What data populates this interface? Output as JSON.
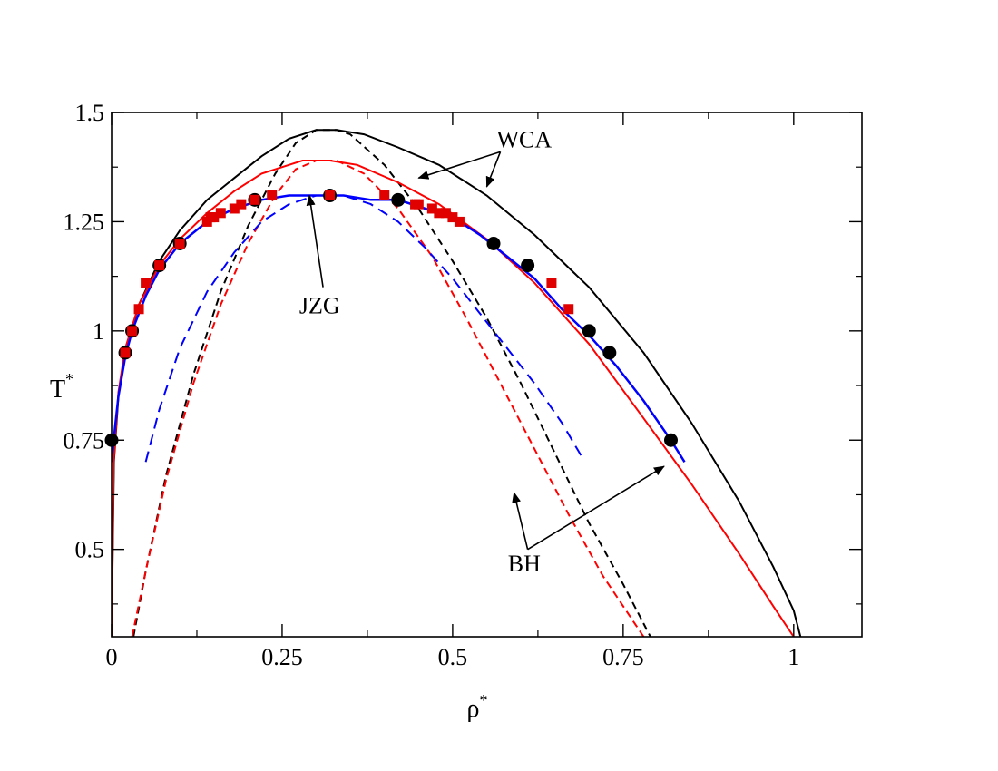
{
  "chart_data": {
    "type": "line",
    "title": "",
    "xlabel": "ρ",
    "xlabel_sup": "*",
    "ylabel": "T",
    "ylabel_sup": "*",
    "xlim": [
      0,
      1.1
    ],
    "ylim": [
      0.3,
      1.5
    ],
    "xticks": [
      {
        "v": 0,
        "label": "0"
      },
      {
        "v": 0.25,
        "label": "0.25"
      },
      {
        "v": 0.5,
        "label": "0.5"
      },
      {
        "v": 0.75,
        "label": "0.75"
      },
      {
        "v": 1,
        "label": "1"
      }
    ],
    "yticks": [
      {
        "v": 0.5,
        "label": "0.5"
      },
      {
        "v": 0.75,
        "label": "0.75"
      },
      {
        "v": 1,
        "label": "1"
      },
      {
        "v": 1.25,
        "label": "1.25"
      },
      {
        "v": 1.5,
        "label": "1.5"
      }
    ],
    "x_minor_step": 0.125,
    "y_minor_step": 0.125,
    "colors": {
      "black": "#000000",
      "red": "#ff0000",
      "blue": "#0000ff",
      "marker_red": "#e00000"
    },
    "series": [
      {
        "name": "WCA solid",
        "color": "#000000",
        "style": "solid",
        "points": [
          [
            0.0,
            0.3
          ],
          [
            0.0035,
            0.7
          ],
          [
            0.01,
            0.85
          ],
          [
            0.02,
            0.95
          ],
          [
            0.04,
            1.06
          ],
          [
            0.07,
            1.16
          ],
          [
            0.1,
            1.23
          ],
          [
            0.14,
            1.3
          ],
          [
            0.18,
            1.35
          ],
          [
            0.22,
            1.4
          ],
          [
            0.26,
            1.44
          ],
          [
            0.3,
            1.46
          ],
          [
            0.33,
            1.46
          ],
          [
            0.37,
            1.45
          ],
          [
            0.42,
            1.42
          ],
          [
            0.48,
            1.38
          ],
          [
            0.55,
            1.31
          ],
          [
            0.62,
            1.22
          ],
          [
            0.7,
            1.1
          ],
          [
            0.78,
            0.95
          ],
          [
            0.85,
            0.79
          ],
          [
            0.92,
            0.61
          ],
          [
            0.97,
            0.46
          ],
          [
            1.0,
            0.36
          ],
          [
            1.01,
            0.3
          ]
        ]
      },
      {
        "name": "WCA dashed",
        "color": "#000000",
        "style": "dashed",
        "points": [
          [
            0.032,
            0.3
          ],
          [
            0.05,
            0.45
          ],
          [
            0.08,
            0.67
          ],
          [
            0.12,
            0.9
          ],
          [
            0.16,
            1.09
          ],
          [
            0.2,
            1.24
          ],
          [
            0.24,
            1.36
          ],
          [
            0.27,
            1.43
          ],
          [
            0.3,
            1.46
          ],
          [
            0.33,
            1.46
          ],
          [
            0.35,
            1.45
          ],
          [
            0.4,
            1.38
          ],
          [
            0.45,
            1.28
          ],
          [
            0.5,
            1.16
          ],
          [
            0.55,
            1.03
          ],
          [
            0.6,
            0.88
          ],
          [
            0.65,
            0.72
          ],
          [
            0.7,
            0.56
          ],
          [
            0.75,
            0.42
          ],
          [
            0.79,
            0.3
          ]
        ]
      },
      {
        "name": "BH solid",
        "color": "#ff0000",
        "style": "solid",
        "points": [
          [
            0.0,
            0.3
          ],
          [
            0.003,
            0.7
          ],
          [
            0.01,
            0.86
          ],
          [
            0.02,
            0.96
          ],
          [
            0.04,
            1.06
          ],
          [
            0.07,
            1.15
          ],
          [
            0.1,
            1.21
          ],
          [
            0.14,
            1.27
          ],
          [
            0.18,
            1.32
          ],
          [
            0.22,
            1.36
          ],
          [
            0.26,
            1.38
          ],
          [
            0.28,
            1.39
          ],
          [
            0.32,
            1.39
          ],
          [
            0.36,
            1.38
          ],
          [
            0.42,
            1.34
          ],
          [
            0.48,
            1.29
          ],
          [
            0.55,
            1.21
          ],
          [
            0.62,
            1.11
          ],
          [
            0.7,
            0.97
          ],
          [
            0.78,
            0.8
          ],
          [
            0.85,
            0.65
          ],
          [
            0.92,
            0.49
          ],
          [
            0.97,
            0.37
          ],
          [
            1.0,
            0.3
          ]
        ]
      },
      {
        "name": "BH dashed",
        "color": "#ff0000",
        "style": "dashed",
        "points": [
          [
            0.03,
            0.3
          ],
          [
            0.05,
            0.45
          ],
          [
            0.08,
            0.66
          ],
          [
            0.12,
            0.88
          ],
          [
            0.16,
            1.06
          ],
          [
            0.2,
            1.2
          ],
          [
            0.24,
            1.31
          ],
          [
            0.27,
            1.37
          ],
          [
            0.3,
            1.39
          ],
          [
            0.33,
            1.39
          ],
          [
            0.37,
            1.36
          ],
          [
            0.42,
            1.28
          ],
          [
            0.47,
            1.17
          ],
          [
            0.52,
            1.03
          ],
          [
            0.57,
            0.88
          ],
          [
            0.62,
            0.73
          ],
          [
            0.67,
            0.58
          ],
          [
            0.72,
            0.44
          ],
          [
            0.78,
            0.3
          ]
        ]
      },
      {
        "name": "JZG solid",
        "color": "#0000ff",
        "style": "solid",
        "points": [
          [
            0.0,
            0.7
          ],
          [
            0.005,
            0.78
          ],
          [
            0.01,
            0.85
          ],
          [
            0.02,
            0.94
          ],
          [
            0.03,
            1.0
          ],
          [
            0.05,
            1.08
          ],
          [
            0.07,
            1.14
          ],
          [
            0.1,
            1.2
          ],
          [
            0.14,
            1.25
          ],
          [
            0.18,
            1.28
          ],
          [
            0.22,
            1.3
          ],
          [
            0.26,
            1.31
          ],
          [
            0.3,
            1.31
          ],
          [
            0.34,
            1.31
          ],
          [
            0.38,
            1.3
          ],
          [
            0.42,
            1.3
          ],
          [
            0.46,
            1.28
          ],
          [
            0.5,
            1.26
          ],
          [
            0.54,
            1.22
          ],
          [
            0.58,
            1.17
          ],
          [
            0.62,
            1.12
          ],
          [
            0.66,
            1.05
          ],
          [
            0.7,
            0.99
          ],
          [
            0.74,
            0.92
          ],
          [
            0.78,
            0.84
          ],
          [
            0.82,
            0.75
          ],
          [
            0.84,
            0.7
          ]
        ]
      },
      {
        "name": "JZG dashed",
        "color": "#0000ff",
        "style": "dashed",
        "points": [
          [
            0.05,
            0.7
          ],
          [
            0.07,
            0.82
          ],
          [
            0.1,
            0.96
          ],
          [
            0.14,
            1.09
          ],
          [
            0.18,
            1.18
          ],
          [
            0.22,
            1.25
          ],
          [
            0.26,
            1.29
          ],
          [
            0.3,
            1.31
          ],
          [
            0.34,
            1.31
          ],
          [
            0.38,
            1.29
          ],
          [
            0.42,
            1.25
          ],
          [
            0.46,
            1.19
          ],
          [
            0.5,
            1.12
          ],
          [
            0.54,
            1.04
          ],
          [
            0.58,
            0.96
          ],
          [
            0.62,
            0.88
          ],
          [
            0.66,
            0.79
          ],
          [
            0.69,
            0.71
          ]
        ]
      }
    ],
    "markers_black_circles": [
      [
        0.0,
        0.75
      ],
      [
        0.02,
        0.95
      ],
      [
        0.03,
        1.0
      ],
      [
        0.07,
        1.15
      ],
      [
        0.1,
        1.2
      ],
      [
        0.21,
        1.3
      ],
      [
        0.32,
        1.31
      ],
      [
        0.42,
        1.3
      ],
      [
        0.56,
        1.2
      ],
      [
        0.61,
        1.15
      ],
      [
        0.7,
        1.0
      ],
      [
        0.73,
        0.95
      ],
      [
        0.82,
        0.75
      ]
    ],
    "markers_red_squares": [
      [
        0.02,
        0.95
      ],
      [
        0.03,
        1.0
      ],
      [
        0.04,
        1.05
      ],
      [
        0.05,
        1.11
      ],
      [
        0.07,
        1.15
      ],
      [
        0.1,
        1.2
      ],
      [
        0.14,
        1.25
      ],
      [
        0.145,
        1.26
      ],
      [
        0.15,
        1.26
      ],
      [
        0.16,
        1.27
      ],
      [
        0.18,
        1.28
      ],
      [
        0.19,
        1.29
      ],
      [
        0.21,
        1.3
      ],
      [
        0.235,
        1.31
      ],
      [
        0.32,
        1.31
      ],
      [
        0.4,
        1.31
      ],
      [
        0.445,
        1.29
      ],
      [
        0.45,
        1.29
      ],
      [
        0.47,
        1.28
      ],
      [
        0.48,
        1.27
      ],
      [
        0.49,
        1.27
      ],
      [
        0.5,
        1.26
      ],
      [
        0.51,
        1.25
      ],
      [
        0.645,
        1.11
      ],
      [
        0.67,
        1.05
      ]
    ],
    "annotations": [
      {
        "text": "WCA",
        "x": 0.605,
        "y": 1.42
      },
      {
        "text": "JZG",
        "x": 0.305,
        "y": 1.04
      },
      {
        "text": "BH",
        "x": 0.605,
        "y": 0.45
      }
    ],
    "arrows": [
      {
        "from": [
          0.57,
          1.41
        ],
        "to": [
          0.45,
          1.35
        ]
      },
      {
        "from": [
          0.57,
          1.41
        ],
        "to": [
          0.55,
          1.33
        ]
      },
      {
        "from": [
          0.31,
          1.1
        ],
        "to": [
          0.29,
          1.31
        ]
      },
      {
        "from": [
          0.61,
          0.5
        ],
        "to": [
          0.59,
          0.63
        ]
      },
      {
        "from": [
          0.61,
          0.5
        ],
        "to": [
          0.81,
          0.69
        ]
      }
    ]
  }
}
